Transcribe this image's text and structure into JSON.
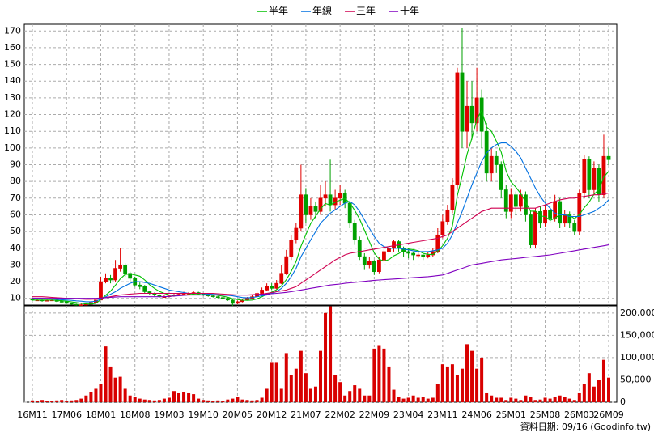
{
  "chart_data": {
    "type": "candlestick",
    "categories": [
      "16M11",
      null,
      null,
      null,
      null,
      null,
      null,
      "17M06",
      null,
      null,
      null,
      null,
      null,
      null,
      "18M01",
      null,
      null,
      null,
      null,
      null,
      null,
      "18M08",
      null,
      null,
      null,
      null,
      null,
      null,
      "19M03",
      null,
      null,
      null,
      null,
      null,
      null,
      "19M10",
      null,
      null,
      null,
      null,
      null,
      null,
      "20M05",
      null,
      null,
      null,
      null,
      null,
      null,
      "20M12",
      null,
      null,
      null,
      null,
      null,
      null,
      "21M07",
      null,
      null,
      null,
      null,
      null,
      null,
      "22M02",
      null,
      null,
      null,
      null,
      null,
      null,
      "22M09",
      null,
      null,
      null,
      null,
      null,
      null,
      "23M04",
      null,
      null,
      null,
      null,
      null,
      null,
      "23M11",
      null,
      null,
      null,
      null,
      null,
      null,
      "24M06",
      null,
      null,
      null,
      null,
      null,
      null,
      "25M01",
      null,
      null,
      null,
      null,
      null,
      null,
      "25M08",
      null,
      null,
      null,
      null,
      null,
      null,
      "26M03",
      null,
      null,
      null,
      null,
      null,
      "26M09"
    ],
    "open": [
      9.5,
      9,
      9,
      8.5,
      8.8,
      9,
      8.2,
      8,
      7,
      6.5,
      6,
      6.2,
      6.5,
      7.5,
      9,
      20,
      22,
      21,
      28,
      30,
      25,
      22,
      18,
      17,
      14,
      13,
      12,
      11,
      11,
      11.5,
      12,
      12.5,
      13,
      13,
      13.5,
      12.5,
      12,
      11.5,
      11,
      10.5,
      10,
      9,
      7,
      8,
      9,
      10,
      11,
      13,
      15,
      17,
      16,
      19,
      25,
      35,
      45,
      52,
      72,
      60,
      65,
      62,
      70,
      72,
      66,
      70,
      73,
      67,
      55,
      45,
      35,
      30,
      32,
      26,
      33,
      38,
      40,
      44,
      40,
      38,
      37,
      36,
      36,
      35,
      36,
      38,
      48,
      56,
      63,
      78,
      145,
      110,
      125,
      115,
      130,
      110,
      85,
      95,
      90,
      75,
      62,
      72,
      65,
      72,
      60,
      42,
      62,
      55,
      63,
      58,
      68,
      55,
      60,
      55,
      50,
      73,
      93,
      75,
      88,
      72,
      95
    ],
    "high": [
      10,
      9.8,
      9.3,
      9.3,
      9.6,
      9.3,
      8.7,
      8.3,
      7.3,
      6.8,
      6.7,
      7,
      8,
      9.8,
      23,
      25,
      24,
      33,
      40,
      31,
      26,
      23,
      19.5,
      18,
      14.5,
      13.5,
      12.5,
      11.8,
      12.2,
      12.7,
      13.3,
      14,
      13.8,
      14.3,
      14,
      13,
      12.4,
      12,
      11.5,
      11,
      10.5,
      9.5,
      8.8,
      9.6,
      10.8,
      11.8,
      14,
      16.5,
      19,
      19,
      21,
      30,
      39,
      48,
      55,
      90,
      76,
      70,
      68,
      78,
      80,
      93,
      75,
      78,
      75,
      68,
      57,
      47,
      37,
      35,
      33,
      35,
      40,
      43,
      45,
      45,
      41,
      40,
      38,
      38,
      37,
      38,
      40,
      52,
      60,
      66,
      82,
      148,
      172,
      140,
      140,
      148,
      135,
      115,
      100,
      98,
      92,
      78,
      76,
      74,
      75,
      74,
      62,
      64,
      65,
      66,
      65,
      72,
      70,
      63,
      62,
      57,
      75,
      96,
      95,
      92,
      90,
      108,
      100
    ],
    "low": [
      8.5,
      8.5,
      8,
      8.2,
      8.5,
      7.8,
      7.5,
      6.7,
      6.1,
      5.7,
      5.8,
      5.9,
      6.3,
      7.2,
      8.8,
      19,
      19,
      20,
      26,
      23,
      20,
      17,
      15.5,
      13,
      12,
      11.2,
      10.5,
      10.4,
      10.6,
      11,
      11.6,
      12,
      12.2,
      12.5,
      12,
      11.4,
      11,
      10.5,
      10,
      9.5,
      8.5,
      5.5,
      6.5,
      7.6,
      8.7,
      9.6,
      10.5,
      12.5,
      14.5,
      15,
      15.5,
      18.5,
      24,
      33,
      43,
      50,
      55,
      57,
      58,
      60,
      65,
      62,
      63,
      66,
      64,
      52,
      42,
      33,
      27,
      28,
      24,
      25,
      32,
      36,
      38,
      38,
      35,
      34,
      33,
      34,
      33,
      34,
      35,
      37,
      46,
      54,
      61,
      75,
      100,
      100,
      105,
      110,
      100,
      80,
      80,
      85,
      70,
      58,
      58,
      60,
      62,
      56,
      40,
      40,
      52,
      53,
      55,
      56,
      52,
      53,
      52,
      48,
      48,
      70,
      70,
      72,
      68,
      70,
      90
    ],
    "close": [
      9,
      9,
      8.5,
      8.8,
      9,
      8.2,
      8,
      7,
      6.5,
      6,
      6.2,
      6.5,
      7.5,
      9,
      20,
      22,
      21,
      28,
      30,
      25,
      22,
      18,
      17,
      14,
      13,
      12,
      11,
      11,
      11.5,
      12,
      12.5,
      13,
      13,
      13.5,
      12.5,
      12,
      11.5,
      11,
      10.5,
      10,
      9,
      7,
      8,
      9,
      10,
      11,
      13,
      15,
      17,
      16,
      19,
      25,
      35,
      45,
      52,
      72,
      60,
      65,
      62,
      70,
      72,
      66,
      70,
      73,
      67,
      55,
      45,
      35,
      30,
      32,
      26,
      33,
      38,
      40,
      44,
      40,
      38,
      37,
      36,
      36,
      35,
      36,
      38,
      48,
      56,
      63,
      78,
      145,
      110,
      125,
      115,
      130,
      110,
      85,
      95,
      90,
      75,
      62,
      72,
      65,
      72,
      60,
      42,
      62,
      55,
      63,
      58,
      68,
      55,
      60,
      55,
      50,
      73,
      93,
      75,
      88,
      72,
      95,
      93
    ],
    "up_color": "#e00000",
    "down_color": "#00a000",
    "series": [
      {
        "name": "半年",
        "color": "#00c000",
        "values": [
          9,
          9,
          9,
          9,
          9,
          8.8,
          8.6,
          8.3,
          7.9,
          7.5,
          7,
          6.7,
          6.6,
          7,
          9.2,
          11.9,
          14.3,
          17.9,
          21.7,
          24.3,
          24.7,
          24,
          23.3,
          21,
          18.2,
          16,
          14.2,
          13,
          12.1,
          11.8,
          11.7,
          11.8,
          12.2,
          12.6,
          12.8,
          12.8,
          12.6,
          12.3,
          11.8,
          11.3,
          10.7,
          9.8,
          9.3,
          8.9,
          8.8,
          9,
          9.7,
          11,
          12.5,
          13.7,
          15.2,
          17.5,
          21.2,
          26.2,
          32,
          41.3,
          48.2,
          54.8,
          59.3,
          63.5,
          66.8,
          65.8,
          67.5,
          68.8,
          69.7,
          67.2,
          62.7,
          57.5,
          50.8,
          44,
          37.2,
          33.5,
          32.3,
          33.2,
          35.5,
          36.8,
          38.8,
          39.5,
          39.2,
          38.5,
          37,
          36.3,
          36.3,
          38.2,
          41.5,
          46,
          53.2,
          71.3,
          83.3,
          96.2,
          106,
          117.2,
          122.5,
          112.5,
          110,
          104.2,
          97.5,
          86.2,
          79.8,
          76.5,
          72.7,
          67.7,
          62.2,
          62.2,
          59.3,
          59,
          56.7,
          58,
          60.2,
          59.8,
          59.8,
          57.7,
          60.2,
          64.3,
          67.7,
          72.3,
          75.2,
          82.7,
          86
        ]
      },
      {
        "name": "年線",
        "color": "#0070e0",
        "values": [
          10,
          10,
          10,
          9.8,
          9.6,
          9.4,
          9.2,
          9,
          8.8,
          8.5,
          8.3,
          8,
          8,
          8.3,
          9.5,
          11,
          12.5,
          14,
          16,
          17.5,
          19,
          20,
          20,
          19.5,
          19,
          18,
          17,
          16,
          15,
          14.5,
          14,
          13.5,
          13,
          13,
          13,
          12.8,
          12.6,
          12.4,
          12.2,
          12,
          11.8,
          11.5,
          11,
          10.5,
          10.3,
          10.5,
          11,
          11.5,
          12,
          13,
          14,
          16,
          19,
          23,
          28,
          35,
          40,
          45,
          50,
          55,
          58,
          61,
          63,
          65,
          67,
          68,
          66,
          62,
          57,
          52,
          47,
          43,
          41,
          40,
          40,
          40,
          39.5,
          39,
          38.5,
          38,
          38,
          38,
          38.5,
          39,
          40,
          43,
          48,
          55,
          62,
          70,
          78,
          85,
          92,
          97,
          100,
          102,
          103,
          103,
          101,
          98,
          94,
          88,
          82,
          76,
          71,
          67,
          64,
          61,
          60,
          60,
          59,
          59,
          59,
          60,
          61,
          62,
          64,
          66,
          69
        ]
      },
      {
        "name": "三年",
        "color": "#d00050",
        "values": [
          11,
          11,
          11,
          10.8,
          10.6,
          10.4,
          10.2,
          10,
          10,
          9.8,
          9.6,
          9.5,
          9.5,
          9.6,
          10,
          10.5,
          11,
          11.5,
          12,
          12.3,
          12.6,
          12.8,
          13,
          13,
          13,
          13,
          13,
          13,
          13,
          13,
          13,
          13,
          13,
          13,
          13,
          13,
          13,
          13,
          12.8,
          12.6,
          12.4,
          12.2,
          12,
          12,
          12,
          12.2,
          12.4,
          12.6,
          13,
          13.5,
          14,
          14.5,
          15,
          16,
          17,
          19,
          21,
          23,
          25,
          27,
          29,
          31,
          33,
          34.5,
          36,
          37,
          37.5,
          38,
          38.5,
          39,
          39.5,
          40,
          40.5,
          41,
          41.5,
          42,
          42.5,
          43,
          43.5,
          44,
          44.5,
          45,
          45.5,
          46,
          47,
          48,
          50,
          52,
          54,
          56,
          58,
          60,
          62,
          63,
          64,
          64,
          64,
          64,
          64,
          64,
          64,
          64,
          64,
          64,
          65,
          66,
          67,
          68,
          69,
          69.5,
          70,
          70,
          70.5,
          71,
          71.5,
          72,
          72,
          72.5,
          73
        ]
      },
      {
        "name": "十年",
        "color": "#8000c0",
        "values": [
          10,
          10,
          10,
          10,
          10,
          10,
          10,
          10,
          10,
          10,
          10,
          10,
          10,
          10,
          10.2,
          10.4,
          10.6,
          10.8,
          11,
          11,
          11,
          11,
          11,
          11,
          11,
          11,
          11,
          11,
          11.2,
          11.4,
          11.6,
          11.8,
          12,
          12,
          12,
          12,
          12,
          12,
          12,
          12,
          12,
          12,
          12,
          12,
          12,
          12,
          12.2,
          12.4,
          12.6,
          12.8,
          13,
          13.3,
          13.6,
          14,
          14.5,
          15,
          15.5,
          16,
          16.5,
          17,
          17.5,
          18,
          18.3,
          18.6,
          19,
          19.3,
          19.6,
          19.9,
          20.2,
          20.5,
          20.8,
          21,
          21.2,
          21.4,
          21.6,
          21.8,
          22,
          22.2,
          22.4,
          22.6,
          22.8,
          23,
          23.3,
          23.6,
          24,
          25,
          26,
          27,
          28,
          29,
          30,
          30.5,
          31,
          31.5,
          32,
          32.5,
          33,
          33.3,
          33.6,
          33.9,
          34.2,
          34.5,
          34.8,
          35.1,
          35.4,
          35.7,
          36,
          36.5,
          37,
          37.5,
          38,
          38.5,
          39,
          39.5,
          40,
          40.5,
          41,
          41.5,
          42
        ]
      }
    ],
    "ylim": [
      6,
      174
    ],
    "yticks": [
      10,
      20,
      30,
      40,
      50,
      60,
      70,
      80,
      90,
      100,
      110,
      120,
      130,
      140,
      150,
      160,
      170
    ],
    "grid": true,
    "volume": {
      "color": "#d80000",
      "values": [
        4000,
        3000,
        5000,
        2000,
        3000,
        4000,
        5000,
        3000,
        4000,
        5000,
        8000,
        15000,
        22000,
        30000,
        40000,
        125000,
        80000,
        55000,
        57000,
        30000,
        15000,
        12000,
        8000,
        6000,
        5000,
        4000,
        5000,
        8000,
        10000,
        25000,
        20000,
        22000,
        20000,
        18000,
        8000,
        5000,
        4000,
        3000,
        4000,
        3000,
        6000,
        8000,
        12000,
        6000,
        5000,
        4000,
        5000,
        10000,
        30000,
        90000,
        90000,
        30000,
        110000,
        60000,
        75000,
        115000,
        65000,
        30000,
        35000,
        115000,
        200000,
        215000,
        60000,
        45000,
        15000,
        25000,
        38000,
        30000,
        15000,
        15000,
        120000,
        128000,
        120000,
        80000,
        28000,
        12000,
        8000,
        10000,
        15000,
        10000,
        12000,
        8000,
        10000,
        40000,
        85000,
        80000,
        85000,
        60000,
        75000,
        130000,
        115000,
        75000,
        100000,
        20000,
        15000,
        10000,
        10000,
        5000,
        10000,
        8000,
        5000,
        15000,
        12000,
        5000,
        6000,
        10000,
        8000,
        12000,
        15000,
        12000,
        8000,
        5000,
        20000,
        40000,
        65000,
        35000,
        50000,
        95000,
        55000
      ],
      "ylim": [
        0,
        216000
      ],
      "yticks": [
        0,
        {
          "value": 50000,
          "label": "50,000"
        },
        {
          "value": 100000,
          "label": "100,000"
        },
        {
          "value": 150000,
          "label": "150,000"
        },
        {
          "value": 200000,
          "label": "200,000"
        }
      ]
    },
    "source": "資料日期: 09/16 (Goodinfo.tw)"
  }
}
